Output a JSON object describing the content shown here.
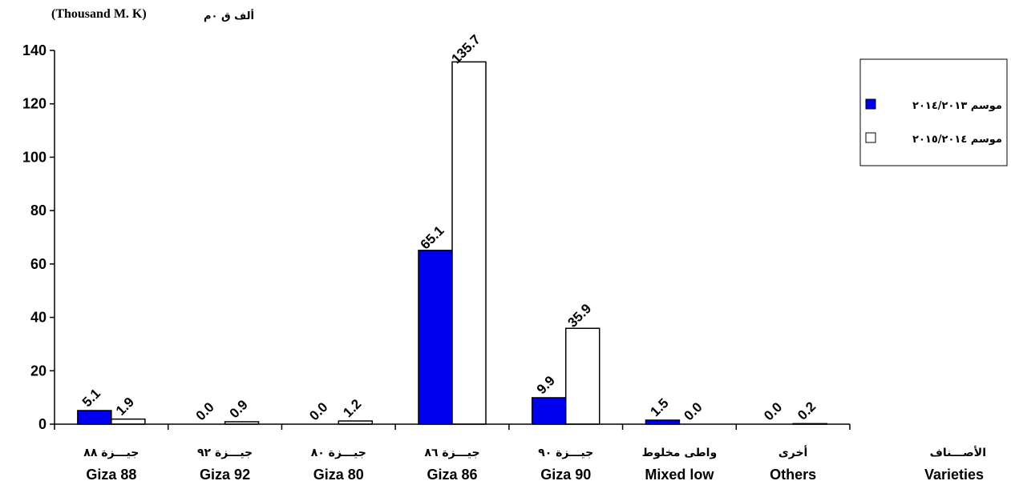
{
  "unit_en": "(Thousand M. K)",
  "unit_ar": "ألف ق ٠م",
  "colors": {
    "series1": "#0000ee",
    "series2": "#ffffff",
    "stroke": "#000000"
  },
  "legend": {
    "items": [
      {
        "label": "موسم ٢٠١٤/٢٠١٣",
        "color": "#0000ee"
      },
      {
        "label": "موسم ٢٠١٥/٢٠١٤",
        "color": "#ffffff"
      }
    ]
  },
  "axis_title": {
    "ar": "الأصـــناف",
    "en": "Varieties"
  },
  "chart_data": {
    "type": "bar",
    "categories": [
      {
        "ar": "جيـــزة ٨٨",
        "en": "Giza 88"
      },
      {
        "ar": "جيـــزة ٩٢",
        "en": "Giza 92"
      },
      {
        "ar": "جيـــزة ٨٠",
        "en": "Giza 80"
      },
      {
        "ar": "جيـــزة ٨٦",
        "en": "Giza 86"
      },
      {
        "ar": "جيـــزة ٩٠",
        "en": "Giza 90"
      },
      {
        "ar": "واطى مخلوط",
        "en": "Mixed low"
      },
      {
        "ar": "أخرى",
        "en": "Others"
      }
    ],
    "series": [
      {
        "name": "موسم ٢٠١٤/٢٠١٣",
        "values": [
          5.1,
          0.0,
          0.0,
          65.1,
          9.9,
          1.5,
          0.0
        ],
        "labels": [
          "5.1",
          "0.0",
          "0.0",
          "65.1",
          "9.9",
          "1.5",
          "0.0"
        ]
      },
      {
        "name": "موسم ٢٠١٥/٢٠١٤",
        "values": [
          1.9,
          0.9,
          1.2,
          135.7,
          35.9,
          0.0,
          0.2
        ],
        "labels": [
          "1.9",
          "0.9",
          "1.2",
          "135.7",
          "35.9",
          "0.0",
          "0.2"
        ]
      }
    ],
    "ylim": [
      0,
      140
    ],
    "yticks": [
      "0",
      "20",
      "40",
      "60",
      "80",
      "100",
      "120",
      "140"
    ],
    "grid": false,
    "legend_position": "right"
  }
}
